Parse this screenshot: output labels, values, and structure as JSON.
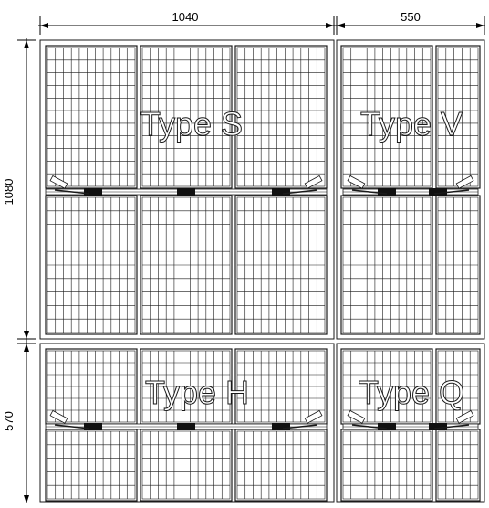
{
  "dimensions": {
    "width_large": "1040",
    "width_small": "550",
    "height_large": "1080",
    "height_small": "570"
  },
  "panels": {
    "top_left": "Type S",
    "top_right": "Type V",
    "bottom_left": "Type H",
    "bottom_right": "Type Q"
  },
  "colors": {
    "line": "#000000",
    "grid": "#1a1a1a",
    "background": "#ffffff"
  }
}
